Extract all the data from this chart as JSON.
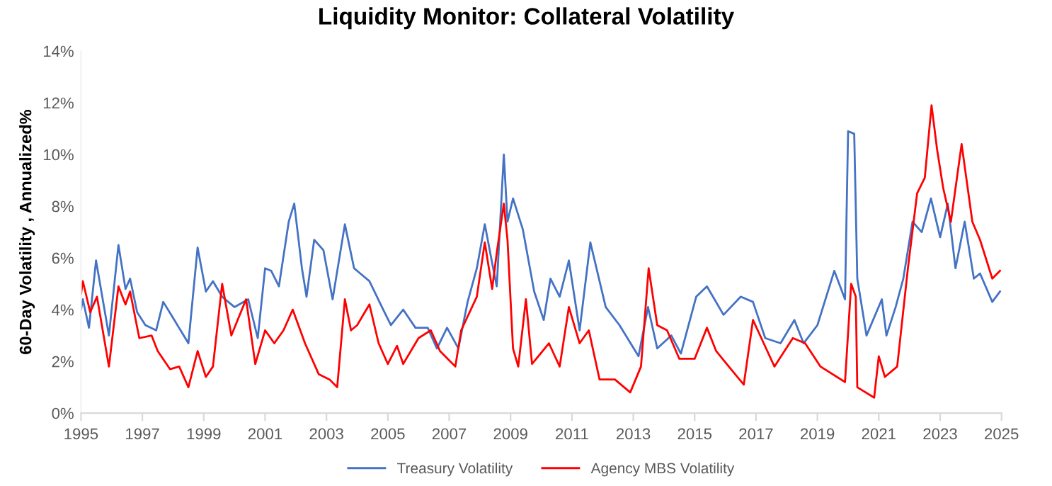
{
  "chart_data": {
    "type": "line",
    "title": "Liquidity Monitor: Collateral Volatility",
    "ylabel": "60-Day Volatility , Annualized%",
    "xlim": [
      1995,
      2025
    ],
    "xticks": [
      1995,
      1997,
      1999,
      2001,
      2003,
      2005,
      2007,
      2009,
      2011,
      2013,
      2015,
      2017,
      2019,
      2021,
      2023,
      2025
    ],
    "ylim": [
      0,
      14
    ],
    "yticks": [
      {
        "value": 0,
        "label": "0%"
      },
      {
        "value": 2,
        "label": "2%"
      },
      {
        "value": 4,
        "label": "4%"
      },
      {
        "value": 6,
        "label": "6%"
      },
      {
        "value": 8,
        "label": "8%"
      },
      {
        "value": 10,
        "label": "10%"
      },
      {
        "value": 12,
        "label": "12%"
      },
      {
        "value": 14,
        "label": "14%"
      }
    ],
    "grid": false,
    "legend": "bottom",
    "marker": "none",
    "line_style": "solid",
    "series": [
      {
        "name": "Treasury Volatility",
        "color": "#4472c4",
        "x": [
          1995.0,
          1995.06,
          1995.26,
          1995.49,
          1995.91,
          1996.22,
          1996.45,
          1996.6,
          1996.83,
          1997.1,
          1997.45,
          1997.68,
          1997.99,
          1998.5,
          1998.8,
          1999.07,
          1999.3,
          1999.6,
          2000.0,
          2000.45,
          2000.76,
          2001.0,
          2001.2,
          2001.45,
          2001.77,
          2001.95,
          2002.2,
          2002.35,
          2002.6,
          2002.9,
          2003.2,
          2003.6,
          2003.9,
          2004.4,
          2004.85,
          2005.1,
          2005.5,
          2005.9,
          2006.3,
          2006.6,
          2006.93,
          2007.3,
          2007.6,
          2007.9,
          2008.16,
          2008.4,
          2008.55,
          2008.78,
          2008.9,
          2009.08,
          2009.4,
          2009.77,
          2010.08,
          2010.3,
          2010.6,
          2010.9,
          2011.25,
          2011.6,
          2012.1,
          2012.55,
          2013.17,
          2013.48,
          2013.78,
          2014.24,
          2014.55,
          2015.05,
          2015.4,
          2015.94,
          2016.5,
          2016.9,
          2017.3,
          2017.8,
          2018.25,
          2018.55,
          2019.0,
          2019.55,
          2019.9,
          2020.0,
          2020.2,
          2020.3,
          2020.6,
          2021.1,
          2021.25,
          2021.55,
          2021.8,
          2022.1,
          2022.4,
          2022.7,
          2023.0,
          2023.25,
          2023.5,
          2023.8,
          2024.1,
          2024.3,
          2024.7,
          2024.95
        ],
        "values": [
          4.0,
          4.4,
          3.3,
          5.9,
          3.0,
          6.5,
          4.8,
          5.2,
          3.9,
          3.4,
          3.2,
          4.3,
          3.7,
          2.7,
          6.4,
          4.7,
          5.1,
          4.5,
          4.1,
          4.4,
          2.9,
          5.6,
          5.5,
          4.9,
          7.4,
          8.1,
          5.6,
          4.5,
          6.7,
          6.3,
          4.4,
          7.3,
          5.6,
          5.1,
          4.0,
          3.4,
          4.0,
          3.3,
          3.3,
          2.5,
          3.3,
          2.5,
          4.3,
          5.6,
          7.3,
          5.8,
          4.9,
          10.0,
          7.4,
          8.3,
          7.1,
          4.7,
          3.6,
          5.2,
          4.5,
          5.9,
          3.2,
          6.6,
          4.1,
          3.4,
          2.2,
          4.1,
          2.5,
          3.0,
          2.3,
          4.5,
          4.9,
          3.8,
          4.5,
          4.3,
          2.9,
          2.7,
          3.6,
          2.7,
          3.4,
          5.5,
          4.4,
          10.9,
          10.8,
          5.2,
          3.0,
          4.4,
          3.0,
          4.1,
          5.2,
          7.4,
          7.0,
          8.3,
          6.8,
          8.1,
          5.6,
          7.4,
          5.2,
          5.4,
          4.3,
          4.7
        ]
      },
      {
        "name": "Agency MBS Volatility",
        "color": "#ff0000",
        "x": [
          1995.0,
          1995.06,
          1995.3,
          1995.52,
          1995.91,
          1996.22,
          1996.45,
          1996.6,
          1996.9,
          1997.3,
          1997.5,
          1997.9,
          1998.2,
          1998.5,
          1998.8,
          1999.07,
          1999.3,
          1999.6,
          1999.9,
          2000.38,
          2000.68,
          2001.0,
          2001.3,
          2001.6,
          2001.9,
          2002.3,
          2002.75,
          2003.1,
          2003.35,
          2003.6,
          2003.8,
          2004.0,
          2004.4,
          2004.7,
          2005.0,
          2005.3,
          2005.5,
          2006.0,
          2006.4,
          2006.7,
          2007.2,
          2007.39,
          2007.9,
          2008.16,
          2008.4,
          2008.55,
          2008.78,
          2008.9,
          2009.08,
          2009.25,
          2009.5,
          2009.7,
          2010.25,
          2010.6,
          2010.9,
          2011.25,
          2011.55,
          2011.9,
          2012.4,
          2012.9,
          2013.25,
          2013.5,
          2013.78,
          2014.1,
          2014.5,
          2015.0,
          2015.4,
          2015.7,
          2016.25,
          2016.6,
          2016.9,
          2017.25,
          2017.6,
          2018.2,
          2018.6,
          2019.1,
          2019.9,
          2020.1,
          2020.25,
          2020.3,
          2020.85,
          2021.0,
          2021.2,
          2021.6,
          2021.95,
          2022.25,
          2022.5,
          2022.72,
          2022.9,
          2023.1,
          2023.35,
          2023.7,
          2024.05,
          2024.3,
          2024.7,
          2024.95
        ],
        "values": [
          4.6,
          5.1,
          3.9,
          4.5,
          1.8,
          4.9,
          4.2,
          4.7,
          2.9,
          3.0,
          2.4,
          1.7,
          1.8,
          1.0,
          2.4,
          1.4,
          1.8,
          5.0,
          3.0,
          4.4,
          1.9,
          3.2,
          2.7,
          3.2,
          4.0,
          2.7,
          1.5,
          1.3,
          1.0,
          4.4,
          3.2,
          3.4,
          4.2,
          2.7,
          1.9,
          2.6,
          1.9,
          2.9,
          3.2,
          2.4,
          1.8,
          3.2,
          4.5,
          6.6,
          4.8,
          6.2,
          8.1,
          6.7,
          2.5,
          1.8,
          4.4,
          1.9,
          2.7,
          1.8,
          4.1,
          2.7,
          3.2,
          1.3,
          1.3,
          0.8,
          1.8,
          5.6,
          3.4,
          3.2,
          2.1,
          2.1,
          3.3,
          2.4,
          1.6,
          1.1,
          3.6,
          2.7,
          1.8,
          2.9,
          2.7,
          1.8,
          1.2,
          5.0,
          4.5,
          1.0,
          0.6,
          2.2,
          1.4,
          1.8,
          5.6,
          8.5,
          9.1,
          11.9,
          10.2,
          8.7,
          7.4,
          10.4,
          7.4,
          6.7,
          5.2,
          5.5
        ]
      }
    ]
  }
}
